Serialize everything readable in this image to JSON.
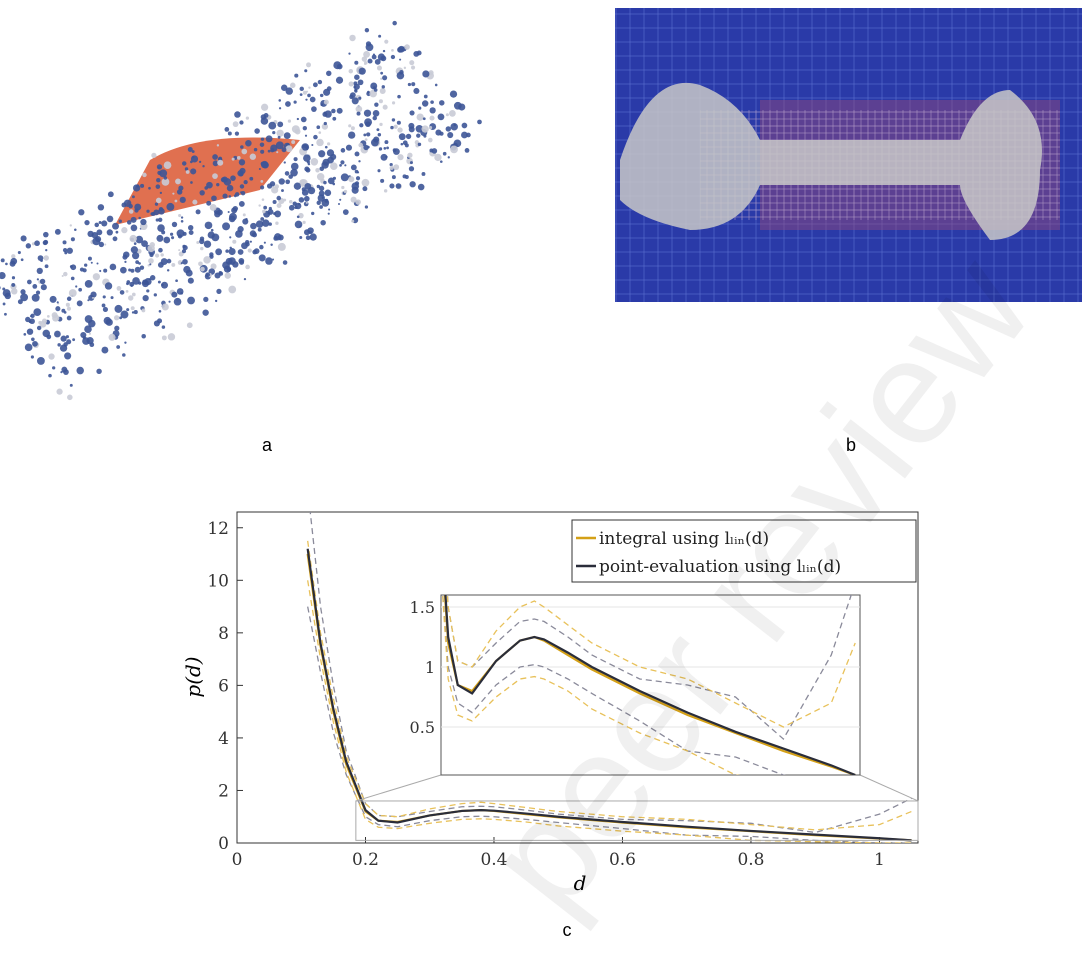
{
  "labels": [
    "a",
    "b",
    "c"
  ],
  "watermark": "peer review",
  "chart_data": {
    "type": "line",
    "xlabel": "d",
    "ylabel": "p(d)",
    "x": [
      0.11,
      0.13,
      0.15,
      0.17,
      0.2,
      0.22,
      0.25,
      0.3,
      0.35,
      0.38,
      0.4,
      0.45,
      0.5,
      0.6,
      0.7,
      0.8,
      0.9,
      1.0,
      1.05
    ],
    "series": [
      {
        "color": "#8a8a9a",
        "dash": true,
        "values": [
          13.5,
          9,
          6,
          3.5,
          1.5,
          1.05,
          1.0,
          1.2,
          1.38,
          1.4,
          1.38,
          1.25,
          1.1,
          0.9,
          0.85,
          0.75,
          0.4,
          1.1,
          1.7
        ]
      },
      {
        "color": "#8a8a9a",
        "dash": true,
        "values": [
          9,
          6.5,
          4.2,
          2.6,
          1.0,
          0.7,
          0.62,
          0.85,
          1.0,
          1.02,
          1.0,
          0.9,
          0.78,
          0.55,
          0.3,
          0.25,
          0.1,
          0,
          0
        ]
      },
      {
        "color": "#e8c15a",
        "dash": true,
        "values": [
          11.5,
          8,
          5.5,
          3.3,
          1.5,
          1.05,
          1.0,
          1.3,
          1.5,
          1.55,
          1.5,
          1.35,
          1.2,
          1.0,
          0.9,
          0.7,
          0.5,
          0.7,
          1.2
        ]
      },
      {
        "color": "#e8c15a",
        "dash": true,
        "values": [
          10,
          7,
          4.6,
          2.7,
          0.9,
          0.6,
          0.55,
          0.75,
          0.9,
          0.92,
          0.9,
          0.8,
          0.65,
          0.45,
          0.3,
          0.1,
          0.05,
          0,
          0
        ]
      },
      {
        "name": "integral using lₗᵢₙ(d)",
        "color": "#d4a017",
        "values": [
          11,
          7.5,
          5,
          3,
          1.2,
          0.85,
          0.8,
          1.05,
          1.22,
          1.25,
          1.22,
          1.1,
          0.98,
          0.78,
          0.6,
          0.45,
          0.3,
          0.17,
          0.1
        ]
      },
      {
        "name": "point-evaluation using lₗᵢₙ(d)",
        "color": "#2a2d3a",
        "values": [
          11.2,
          7.6,
          5.1,
          3.1,
          1.25,
          0.85,
          0.78,
          1.05,
          1.22,
          1.25,
          1.23,
          1.12,
          1,
          0.8,
          0.62,
          0.46,
          0.32,
          0.18,
          0.1
        ]
      }
    ],
    "xlim": [
      0,
      1.06
    ],
    "ylim": [
      0,
      12.6
    ],
    "xticks": [
      0,
      0.2,
      0.4,
      0.6,
      0.8,
      1
    ],
    "yticks": [
      0,
      2,
      4,
      6,
      8,
      10,
      12
    ],
    "legend": "upper right",
    "inset": {
      "xlim": [
        0.185,
        1.06
      ],
      "ylim": [
        0.1,
        1.6
      ],
      "yticks": [
        0.5,
        1,
        1.5
      ],
      "grid": true
    }
  }
}
